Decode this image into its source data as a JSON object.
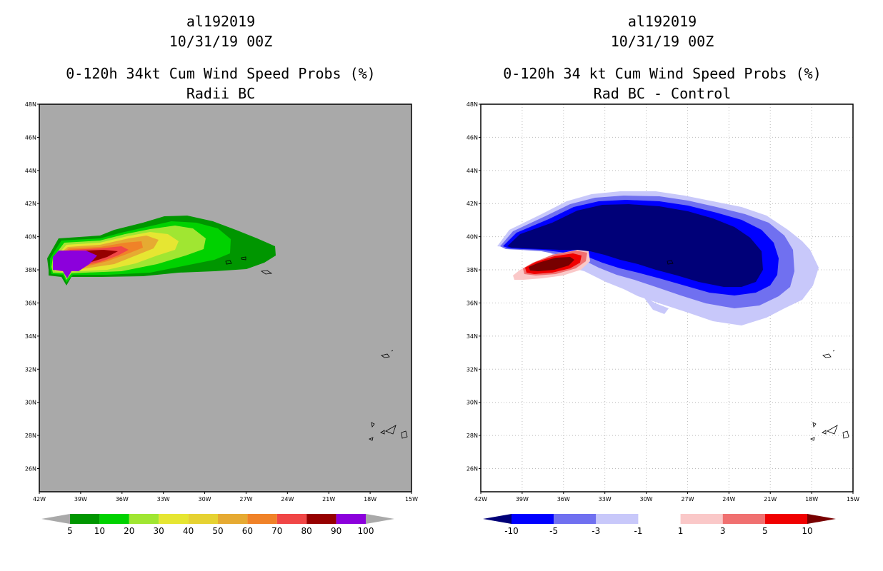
{
  "lat_labels": [
    "48N",
    "46N",
    "44N",
    "42N",
    "40N",
    "38N",
    "36N",
    "34N",
    "32N",
    "30N",
    "28N",
    "26N"
  ],
  "lon_labels": [
    "42W",
    "39W",
    "36W",
    "33W",
    "30W",
    "27W",
    "24W",
    "21W",
    "18W",
    "15W"
  ],
  "left": {
    "title_1": "al192019",
    "title_2": "10/31/19 00Z",
    "title_3": "0-120h 34kt Cum Wind Speed Probs (%)",
    "title_4": "Radii BC",
    "background_color": "#a9a9a9",
    "colorbar": {
      "colors": [
        "#009600",
        "#00d200",
        "#a0e632",
        "#e6e632",
        "#e6d232",
        "#e6aa32",
        "#f08228",
        "#f04646",
        "#960000",
        "#8c00dc"
      ],
      "labels": [
        "5",
        "10",
        "20",
        "30",
        "40",
        "50",
        "60",
        "70",
        "80",
        "90",
        "100"
      ],
      "end_color": "#a9a9a9"
    }
  },
  "right": {
    "title_1": "al192019",
    "title_2": "10/31/19 00Z",
    "title_3": "0-120h 34 kt Cum Wind Speed Probs (%)",
    "title_4": "Rad BC - Control",
    "background_color": "#ffffff",
    "colorbar": {
      "colors": [
        "#0000ff",
        "#7070f0",
        "#c8c8fa",
        "#ffffff",
        "#fac8c8",
        "#f07070",
        "#f00000"
      ],
      "labels": [
        "-10",
        "-5",
        "-3",
        "-1",
        "1",
        "3",
        "5",
        "10"
      ],
      "low_color": "#000078",
      "high_color": "#780000"
    }
  }
}
